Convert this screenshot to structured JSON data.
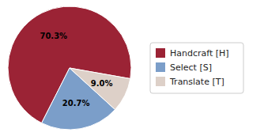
{
  "chart_data": {
    "type": "pie",
    "categories": [
      "Handcraft [H]",
      "Select [S]",
      "Translate [T]"
    ],
    "values": [
      70.3,
      20.7,
      9.0
    ],
    "value_labels": [
      "70.3%",
      "20.7%",
      "9.0%"
    ],
    "colors": [
      "#9b2335",
      "#7b9ec9",
      "#ddd0c8"
    ],
    "data_labels": true,
    "legend": "right"
  }
}
